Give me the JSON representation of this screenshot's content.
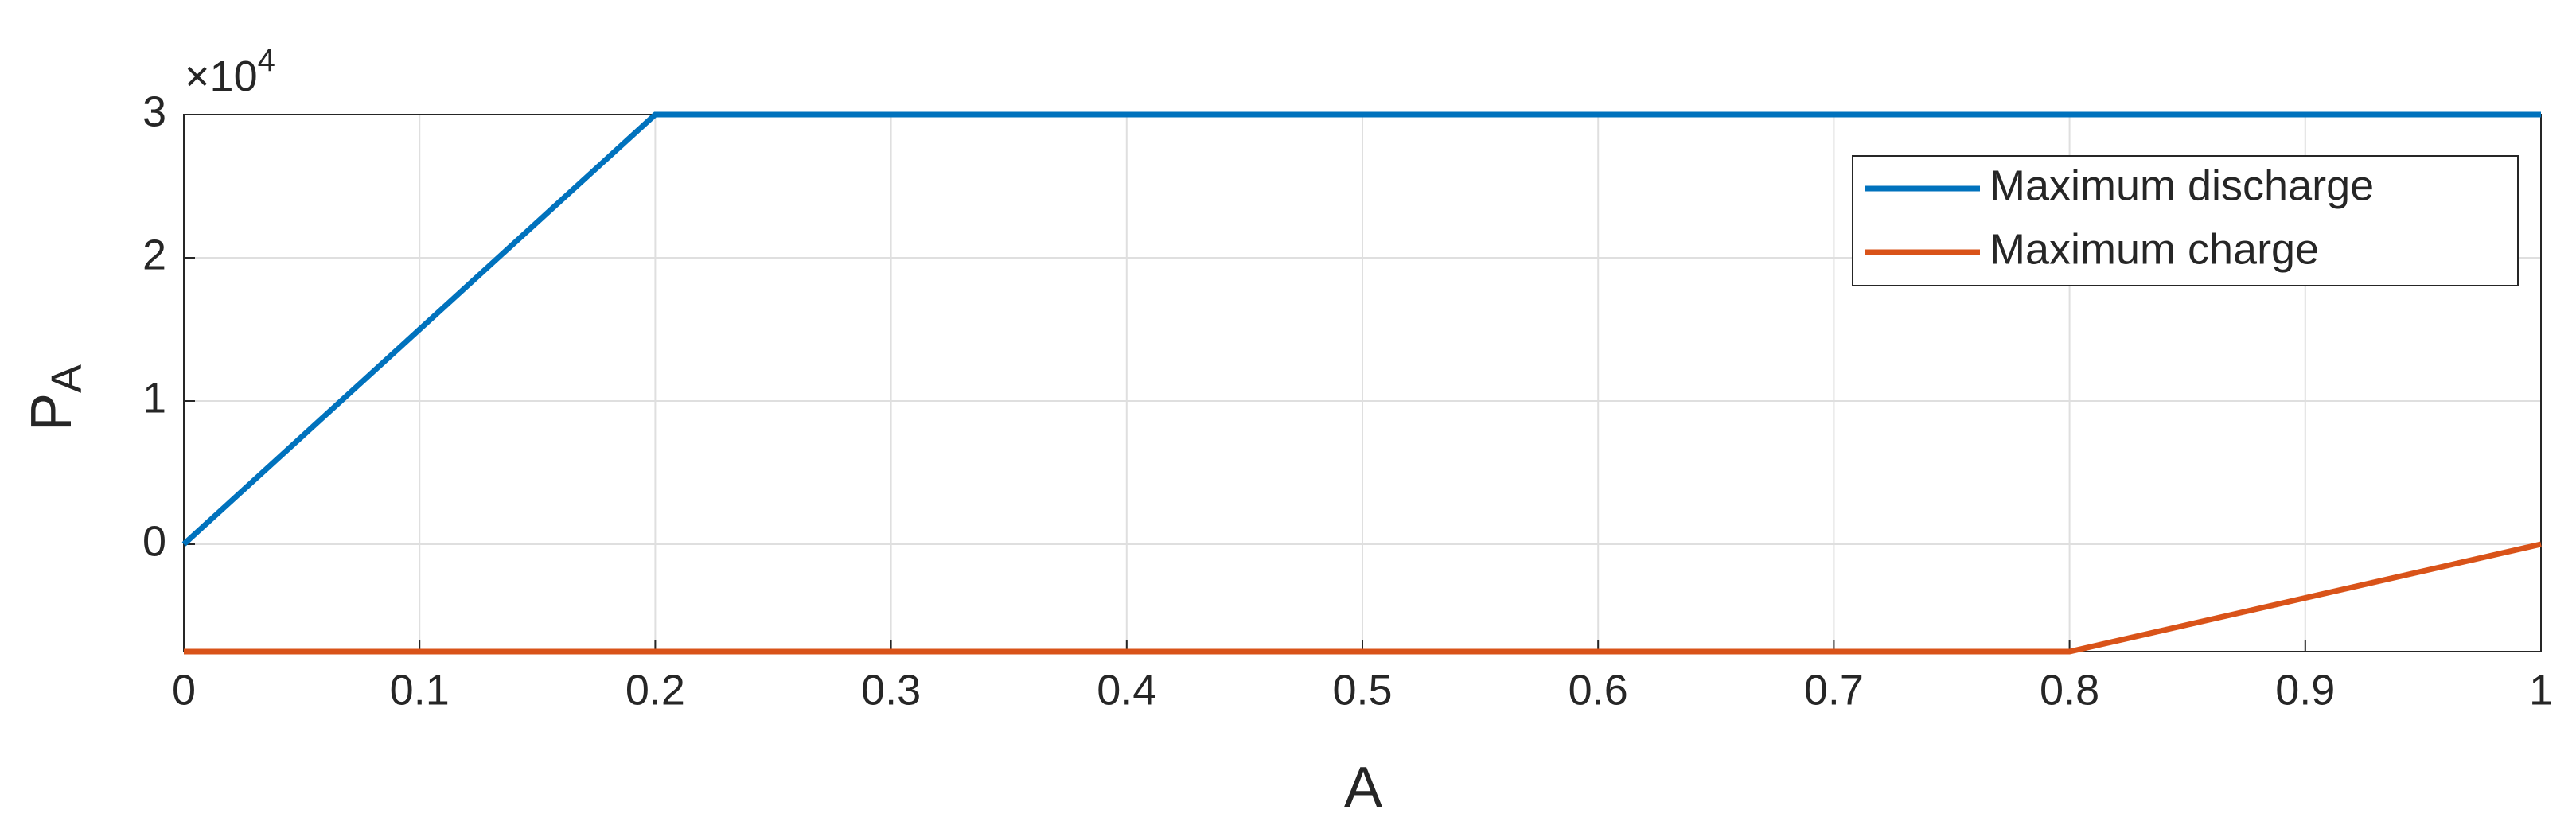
{
  "chart_data": {
    "type": "line",
    "xlabel": "A",
    "ylabel": "P",
    "ylabel_subscript": "A",
    "y_multiplier": {
      "base": "×10",
      "power": "4"
    },
    "xlim": [
      0,
      1
    ],
    "xticks": [
      0,
      0.1,
      0.2,
      0.3,
      0.4,
      0.5,
      0.6,
      0.7,
      0.8,
      0.9,
      1
    ],
    "ylim": [
      -7500,
      30000
    ],
    "yticks": [
      {
        "value": 0,
        "label": "0"
      },
      {
        "value": 10000,
        "label": "1"
      },
      {
        "value": 20000,
        "label": "2"
      },
      {
        "value": 30000,
        "label": "3"
      }
    ],
    "grid": true,
    "legend": "upper right",
    "series": [
      {
        "name": "Maximum discharge",
        "color": "#0072BD",
        "x": [
          0,
          0.2,
          1
        ],
        "values": [
          0,
          30000,
          30000
        ]
      },
      {
        "name": "Maximum charge",
        "color": "#D95319",
        "x": [
          0,
          0.8,
          1
        ],
        "values": [
          -7500,
          -7500,
          0
        ]
      }
    ]
  }
}
